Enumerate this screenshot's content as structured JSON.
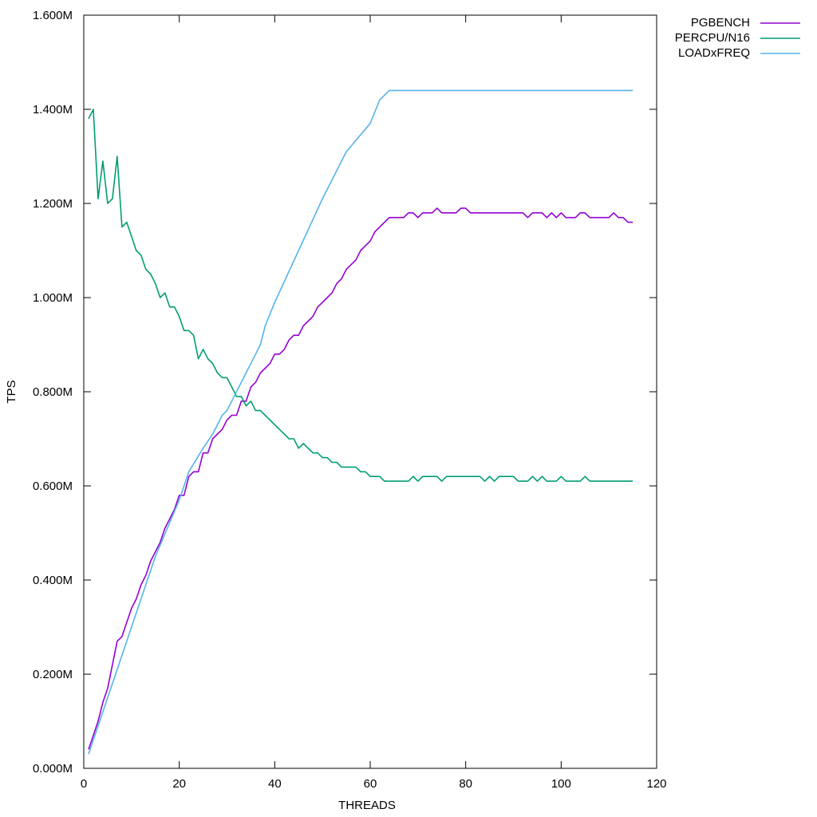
{
  "chart_data": {
    "type": "line",
    "xlabel": "THREADS",
    "ylabel": "TPS",
    "xlim": [
      0,
      120
    ],
    "ylim": [
      0,
      1.6
    ],
    "xticks": [
      0,
      20,
      40,
      60,
      80,
      100,
      120
    ],
    "xtick_labels": [
      "0",
      "20",
      "40",
      "60",
      "80",
      "100",
      "120"
    ],
    "yticks": [
      0,
      0.2,
      0.4,
      0.6,
      0.8,
      1.0,
      1.2,
      1.4,
      1.6
    ],
    "ytick_labels": [
      "0.000M",
      "0.200M",
      "0.400M",
      "0.600M",
      "0.800M",
      "1.000M",
      "1.200M",
      "1.400M",
      "1.600M"
    ],
    "grid": false,
    "legend_position": "outside-top-right",
    "series": [
      {
        "name": "PGBENCH",
        "color": "#9400d3",
        "points": [
          [
            1,
            0.04
          ],
          [
            2,
            0.07
          ],
          [
            3,
            0.1
          ],
          [
            4,
            0.14
          ],
          [
            5,
            0.17
          ],
          [
            6,
            0.22
          ],
          [
            7,
            0.27
          ],
          [
            8,
            0.28
          ],
          [
            9,
            0.31
          ],
          [
            10,
            0.34
          ],
          [
            11,
            0.36
          ],
          [
            12,
            0.39
          ],
          [
            13,
            0.41
          ],
          [
            14,
            0.44
          ],
          [
            15,
            0.46
          ],
          [
            16,
            0.48
          ],
          [
            17,
            0.51
          ],
          [
            18,
            0.53
          ],
          [
            19,
            0.55
          ],
          [
            20,
            0.58
          ],
          [
            21,
            0.58
          ],
          [
            22,
            0.62
          ],
          [
            23,
            0.63
          ],
          [
            24,
            0.63
          ],
          [
            25,
            0.67
          ],
          [
            26,
            0.67
          ],
          [
            27,
            0.7
          ],
          [
            28,
            0.71
          ],
          [
            29,
            0.72
          ],
          [
            30,
            0.74
          ],
          [
            31,
            0.75
          ],
          [
            32,
            0.75
          ],
          [
            33,
            0.78
          ],
          [
            34,
            0.78
          ],
          [
            35,
            0.81
          ],
          [
            36,
            0.82
          ],
          [
            37,
            0.84
          ],
          [
            38,
            0.85
          ],
          [
            39,
            0.86
          ],
          [
            40,
            0.88
          ],
          [
            41,
            0.88
          ],
          [
            42,
            0.89
          ],
          [
            43,
            0.91
          ],
          [
            44,
            0.92
          ],
          [
            45,
            0.92
          ],
          [
            46,
            0.94
          ],
          [
            47,
            0.95
          ],
          [
            48,
            0.96
          ],
          [
            49,
            0.98
          ],
          [
            50,
            0.99
          ],
          [
            51,
            1.0
          ],
          [
            52,
            1.01
          ],
          [
            53,
            1.03
          ],
          [
            54,
            1.04
          ],
          [
            55,
            1.06
          ],
          [
            56,
            1.07
          ],
          [
            57,
            1.08
          ],
          [
            58,
            1.1
          ],
          [
            59,
            1.11
          ],
          [
            60,
            1.12
          ],
          [
            61,
            1.14
          ],
          [
            62,
            1.15
          ],
          [
            63,
            1.16
          ],
          [
            64,
            1.17
          ],
          [
            65,
            1.17
          ],
          [
            66,
            1.17
          ],
          [
            67,
            1.17
          ],
          [
            68,
            1.18
          ],
          [
            69,
            1.18
          ],
          [
            70,
            1.17
          ],
          [
            71,
            1.18
          ],
          [
            72,
            1.18
          ],
          [
            73,
            1.18
          ],
          [
            74,
            1.19
          ],
          [
            75,
            1.18
          ],
          [
            76,
            1.18
          ],
          [
            77,
            1.18
          ],
          [
            78,
            1.18
          ],
          [
            79,
            1.19
          ],
          [
            80,
            1.19
          ],
          [
            81,
            1.18
          ],
          [
            82,
            1.18
          ],
          [
            85,
            1.18
          ],
          [
            90,
            1.18
          ],
          [
            92,
            1.18
          ],
          [
            93,
            1.17
          ],
          [
            94,
            1.18
          ],
          [
            95,
            1.18
          ],
          [
            96,
            1.18
          ],
          [
            97,
            1.17
          ],
          [
            98,
            1.18
          ],
          [
            99,
            1.17
          ],
          [
            100,
            1.18
          ],
          [
            101,
            1.17
          ],
          [
            102,
            1.17
          ],
          [
            103,
            1.17
          ],
          [
            104,
            1.18
          ],
          [
            105,
            1.18
          ],
          [
            106,
            1.17
          ],
          [
            107,
            1.17
          ],
          [
            108,
            1.17
          ],
          [
            109,
            1.17
          ],
          [
            110,
            1.17
          ],
          [
            111,
            1.18
          ],
          [
            112,
            1.17
          ],
          [
            113,
            1.17
          ],
          [
            114,
            1.16
          ],
          [
            115,
            1.16
          ]
        ]
      },
      {
        "name": "PERCPU/N16",
        "color": "#009e73",
        "points": [
          [
            1,
            1.38
          ],
          [
            2,
            1.4
          ],
          [
            3,
            1.21
          ],
          [
            4,
            1.29
          ],
          [
            5,
            1.2
          ],
          [
            6,
            1.21
          ],
          [
            7,
            1.3
          ],
          [
            8,
            1.15
          ],
          [
            9,
            1.16
          ],
          [
            10,
            1.13
          ],
          [
            11,
            1.1
          ],
          [
            12,
            1.09
          ],
          [
            13,
            1.06
          ],
          [
            14,
            1.05
          ],
          [
            15,
            1.03
          ],
          [
            16,
            1.0
          ],
          [
            17,
            1.01
          ],
          [
            18,
            0.98
          ],
          [
            19,
            0.98
          ],
          [
            20,
            0.96
          ],
          [
            21,
            0.93
          ],
          [
            22,
            0.93
          ],
          [
            23,
            0.92
          ],
          [
            24,
            0.87
          ],
          [
            25,
            0.89
          ],
          [
            26,
            0.87
          ],
          [
            27,
            0.86
          ],
          [
            28,
            0.84
          ],
          [
            29,
            0.83
          ],
          [
            30,
            0.83
          ],
          [
            31,
            0.81
          ],
          [
            32,
            0.79
          ],
          [
            33,
            0.79
          ],
          [
            34,
            0.77
          ],
          [
            35,
            0.78
          ],
          [
            36,
            0.76
          ],
          [
            37,
            0.76
          ],
          [
            38,
            0.75
          ],
          [
            39,
            0.74
          ],
          [
            40,
            0.73
          ],
          [
            41,
            0.72
          ],
          [
            42,
            0.71
          ],
          [
            43,
            0.7
          ],
          [
            44,
            0.7
          ],
          [
            45,
            0.68
          ],
          [
            46,
            0.69
          ],
          [
            47,
            0.68
          ],
          [
            48,
            0.67
          ],
          [
            49,
            0.67
          ],
          [
            50,
            0.66
          ],
          [
            51,
            0.66
          ],
          [
            52,
            0.65
          ],
          [
            53,
            0.65
          ],
          [
            54,
            0.64
          ],
          [
            55,
            0.64
          ],
          [
            56,
            0.64
          ],
          [
            57,
            0.64
          ],
          [
            58,
            0.63
          ],
          [
            59,
            0.63
          ],
          [
            60,
            0.62
          ],
          [
            61,
            0.62
          ],
          [
            62,
            0.62
          ],
          [
            63,
            0.61
          ],
          [
            64,
            0.61
          ],
          [
            68,
            0.61
          ],
          [
            69,
            0.62
          ],
          [
            70,
            0.61
          ],
          [
            71,
            0.62
          ],
          [
            72,
            0.62
          ],
          [
            73,
            0.62
          ],
          [
            74,
            0.62
          ],
          [
            75,
            0.61
          ],
          [
            76,
            0.62
          ],
          [
            77,
            0.62
          ],
          [
            80,
            0.62
          ],
          [
            83,
            0.62
          ],
          [
            84,
            0.61
          ],
          [
            85,
            0.62
          ],
          [
            86,
            0.61
          ],
          [
            87,
            0.62
          ],
          [
            88,
            0.62
          ],
          [
            90,
            0.62
          ],
          [
            91,
            0.61
          ],
          [
            92,
            0.61
          ],
          [
            93,
            0.61
          ],
          [
            94,
            0.62
          ],
          [
            95,
            0.61
          ],
          [
            96,
            0.62
          ],
          [
            97,
            0.61
          ],
          [
            98,
            0.61
          ],
          [
            99,
            0.61
          ],
          [
            100,
            0.62
          ],
          [
            101,
            0.61
          ],
          [
            102,
            0.61
          ],
          [
            103,
            0.61
          ],
          [
            104,
            0.61
          ],
          [
            105,
            0.62
          ],
          [
            106,
            0.61
          ],
          [
            107,
            0.61
          ],
          [
            110,
            0.61
          ],
          [
            115,
            0.61
          ]
        ]
      },
      {
        "name": "LOADxFREQ",
        "color": "#56b4e9",
        "points": [
          [
            1,
            0.03
          ],
          [
            3,
            0.09
          ],
          [
            5,
            0.15
          ],
          [
            8,
            0.24
          ],
          [
            10,
            0.3
          ],
          [
            15,
            0.45
          ],
          [
            20,
            0.57
          ],
          [
            22,
            0.63
          ],
          [
            25,
            0.68
          ],
          [
            27,
            0.71
          ],
          [
            29,
            0.75
          ],
          [
            30,
            0.76
          ],
          [
            32,
            0.8
          ],
          [
            34,
            0.84
          ],
          [
            36,
            0.88
          ],
          [
            37,
            0.9
          ],
          [
            38,
            0.94
          ],
          [
            40,
            0.99
          ],
          [
            45,
            1.1
          ],
          [
            50,
            1.21
          ],
          [
            55,
            1.31
          ],
          [
            60,
            1.37
          ],
          [
            62,
            1.42
          ],
          [
            63,
            1.43
          ],
          [
            64,
            1.44
          ],
          [
            70,
            1.44
          ],
          [
            80,
            1.44
          ],
          [
            90,
            1.44
          ],
          [
            100,
            1.44
          ],
          [
            110,
            1.44
          ],
          [
            115,
            1.44
          ]
        ]
      }
    ]
  }
}
